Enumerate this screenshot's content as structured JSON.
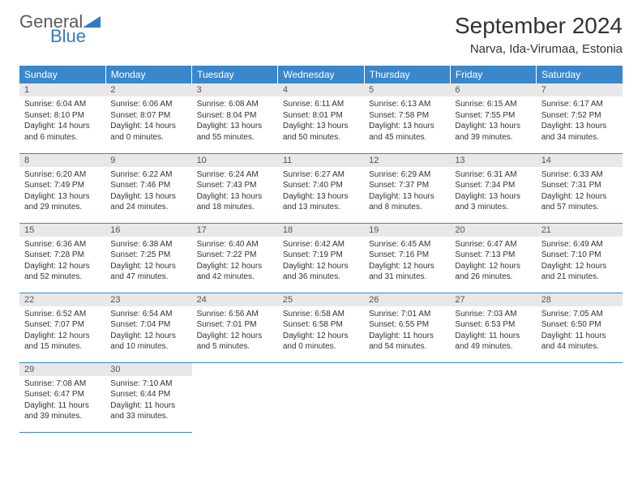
{
  "logo": {
    "text_general": "General",
    "text_blue": "Blue"
  },
  "header": {
    "month_title": "September 2024",
    "location": "Narva, Ida-Virumaa, Estonia"
  },
  "colors": {
    "header_bg": "#3a87cc",
    "header_text": "#ffffff",
    "daynum_bg": "#e8e8e8",
    "border": "#3a87cc",
    "logo_blue": "#2f7bbf",
    "logo_gray": "#5a5a5a"
  },
  "weekdays": [
    "Sunday",
    "Monday",
    "Tuesday",
    "Wednesday",
    "Thursday",
    "Friday",
    "Saturday"
  ],
  "weeks": [
    [
      {
        "day": "1",
        "sunrise": "Sunrise: 6:04 AM",
        "sunset": "Sunset: 8:10 PM",
        "daylight1": "Daylight: 14 hours",
        "daylight2": "and 6 minutes."
      },
      {
        "day": "2",
        "sunrise": "Sunrise: 6:06 AM",
        "sunset": "Sunset: 8:07 PM",
        "daylight1": "Daylight: 14 hours",
        "daylight2": "and 0 minutes."
      },
      {
        "day": "3",
        "sunrise": "Sunrise: 6:08 AM",
        "sunset": "Sunset: 8:04 PM",
        "daylight1": "Daylight: 13 hours",
        "daylight2": "and 55 minutes."
      },
      {
        "day": "4",
        "sunrise": "Sunrise: 6:11 AM",
        "sunset": "Sunset: 8:01 PM",
        "daylight1": "Daylight: 13 hours",
        "daylight2": "and 50 minutes."
      },
      {
        "day": "5",
        "sunrise": "Sunrise: 6:13 AM",
        "sunset": "Sunset: 7:58 PM",
        "daylight1": "Daylight: 13 hours",
        "daylight2": "and 45 minutes."
      },
      {
        "day": "6",
        "sunrise": "Sunrise: 6:15 AM",
        "sunset": "Sunset: 7:55 PM",
        "daylight1": "Daylight: 13 hours",
        "daylight2": "and 39 minutes."
      },
      {
        "day": "7",
        "sunrise": "Sunrise: 6:17 AM",
        "sunset": "Sunset: 7:52 PM",
        "daylight1": "Daylight: 13 hours",
        "daylight2": "and 34 minutes."
      }
    ],
    [
      {
        "day": "8",
        "sunrise": "Sunrise: 6:20 AM",
        "sunset": "Sunset: 7:49 PM",
        "daylight1": "Daylight: 13 hours",
        "daylight2": "and 29 minutes."
      },
      {
        "day": "9",
        "sunrise": "Sunrise: 6:22 AM",
        "sunset": "Sunset: 7:46 PM",
        "daylight1": "Daylight: 13 hours",
        "daylight2": "and 24 minutes."
      },
      {
        "day": "10",
        "sunrise": "Sunrise: 6:24 AM",
        "sunset": "Sunset: 7:43 PM",
        "daylight1": "Daylight: 13 hours",
        "daylight2": "and 18 minutes."
      },
      {
        "day": "11",
        "sunrise": "Sunrise: 6:27 AM",
        "sunset": "Sunset: 7:40 PM",
        "daylight1": "Daylight: 13 hours",
        "daylight2": "and 13 minutes."
      },
      {
        "day": "12",
        "sunrise": "Sunrise: 6:29 AM",
        "sunset": "Sunset: 7:37 PM",
        "daylight1": "Daylight: 13 hours",
        "daylight2": "and 8 minutes."
      },
      {
        "day": "13",
        "sunrise": "Sunrise: 6:31 AM",
        "sunset": "Sunset: 7:34 PM",
        "daylight1": "Daylight: 13 hours",
        "daylight2": "and 3 minutes."
      },
      {
        "day": "14",
        "sunrise": "Sunrise: 6:33 AM",
        "sunset": "Sunset: 7:31 PM",
        "daylight1": "Daylight: 12 hours",
        "daylight2": "and 57 minutes."
      }
    ],
    [
      {
        "day": "15",
        "sunrise": "Sunrise: 6:36 AM",
        "sunset": "Sunset: 7:28 PM",
        "daylight1": "Daylight: 12 hours",
        "daylight2": "and 52 minutes."
      },
      {
        "day": "16",
        "sunrise": "Sunrise: 6:38 AM",
        "sunset": "Sunset: 7:25 PM",
        "daylight1": "Daylight: 12 hours",
        "daylight2": "and 47 minutes."
      },
      {
        "day": "17",
        "sunrise": "Sunrise: 6:40 AM",
        "sunset": "Sunset: 7:22 PM",
        "daylight1": "Daylight: 12 hours",
        "daylight2": "and 42 minutes."
      },
      {
        "day": "18",
        "sunrise": "Sunrise: 6:42 AM",
        "sunset": "Sunset: 7:19 PM",
        "daylight1": "Daylight: 12 hours",
        "daylight2": "and 36 minutes."
      },
      {
        "day": "19",
        "sunrise": "Sunrise: 6:45 AM",
        "sunset": "Sunset: 7:16 PM",
        "daylight1": "Daylight: 12 hours",
        "daylight2": "and 31 minutes."
      },
      {
        "day": "20",
        "sunrise": "Sunrise: 6:47 AM",
        "sunset": "Sunset: 7:13 PM",
        "daylight1": "Daylight: 12 hours",
        "daylight2": "and 26 minutes."
      },
      {
        "day": "21",
        "sunrise": "Sunrise: 6:49 AM",
        "sunset": "Sunset: 7:10 PM",
        "daylight1": "Daylight: 12 hours",
        "daylight2": "and 21 minutes."
      }
    ],
    [
      {
        "day": "22",
        "sunrise": "Sunrise: 6:52 AM",
        "sunset": "Sunset: 7:07 PM",
        "daylight1": "Daylight: 12 hours",
        "daylight2": "and 15 minutes."
      },
      {
        "day": "23",
        "sunrise": "Sunrise: 6:54 AM",
        "sunset": "Sunset: 7:04 PM",
        "daylight1": "Daylight: 12 hours",
        "daylight2": "and 10 minutes."
      },
      {
        "day": "24",
        "sunrise": "Sunrise: 6:56 AM",
        "sunset": "Sunset: 7:01 PM",
        "daylight1": "Daylight: 12 hours",
        "daylight2": "and 5 minutes."
      },
      {
        "day": "25",
        "sunrise": "Sunrise: 6:58 AM",
        "sunset": "Sunset: 6:58 PM",
        "daylight1": "Daylight: 12 hours",
        "daylight2": "and 0 minutes."
      },
      {
        "day": "26",
        "sunrise": "Sunrise: 7:01 AM",
        "sunset": "Sunset: 6:55 PM",
        "daylight1": "Daylight: 11 hours",
        "daylight2": "and 54 minutes."
      },
      {
        "day": "27",
        "sunrise": "Sunrise: 7:03 AM",
        "sunset": "Sunset: 6:53 PM",
        "daylight1": "Daylight: 11 hours",
        "daylight2": "and 49 minutes."
      },
      {
        "day": "28",
        "sunrise": "Sunrise: 7:05 AM",
        "sunset": "Sunset: 6:50 PM",
        "daylight1": "Daylight: 11 hours",
        "daylight2": "and 44 minutes."
      }
    ],
    [
      {
        "day": "29",
        "sunrise": "Sunrise: 7:08 AM",
        "sunset": "Sunset: 6:47 PM",
        "daylight1": "Daylight: 11 hours",
        "daylight2": "and 39 minutes."
      },
      {
        "day": "30",
        "sunrise": "Sunrise: 7:10 AM",
        "sunset": "Sunset: 6:44 PM",
        "daylight1": "Daylight: 11 hours",
        "daylight2": "and 33 minutes."
      },
      null,
      null,
      null,
      null,
      null
    ]
  ]
}
